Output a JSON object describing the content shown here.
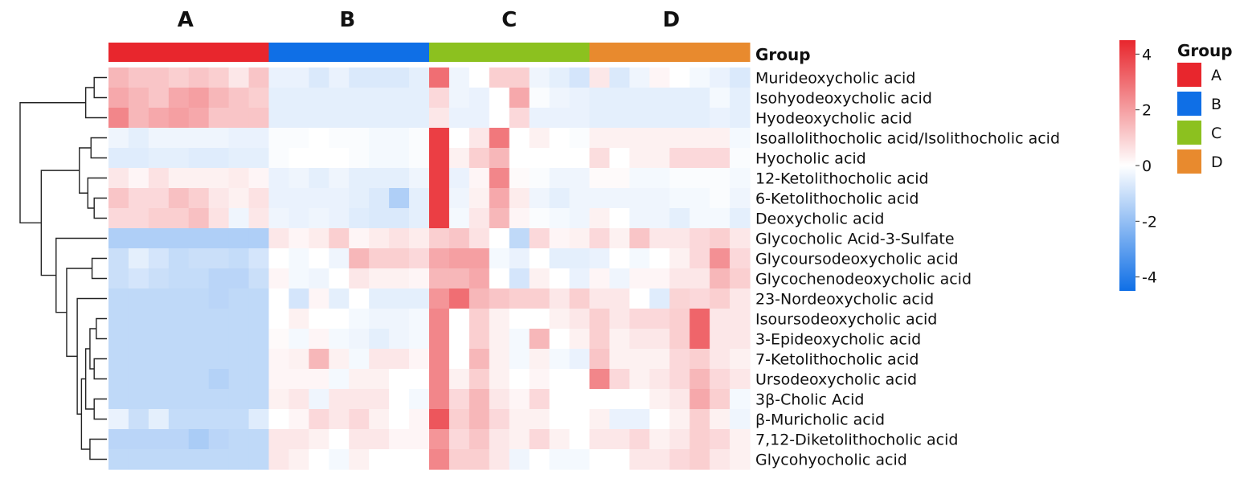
{
  "chart_data": {
    "type": "heatmap",
    "group_titles": [
      "A",
      "B",
      "C",
      "D"
    ],
    "annotation_title": "Group",
    "legend_title": "Group",
    "groups": [
      {
        "name": "A",
        "color": "#e8262d",
        "samples": 8
      },
      {
        "name": "B",
        "color": "#0f6fe6",
        "samples": 8
      },
      {
        "name": "C",
        "color": "#8cc11f",
        "samples": 8
      },
      {
        "name": "D",
        "color": "#e88a2e",
        "samples": 8
      }
    ],
    "rows": [
      "Murideoxycholic acid",
      "Isohyodeoxycholic acid",
      "Hyodeoxycholic acid",
      "Isoallolithocholic acid/Isolithocholic acid",
      "Hyocholic acid",
      "12-Ketolithocholic acid",
      "6-Ketolithocholic acid",
      "Deoxycholic acid",
      "Glycocholic Acid-3-Sulfate",
      "Glycoursodeoxycholic acid",
      "Glycochenodeoxycholic acid",
      "23-Nordeoxycholic acid",
      "Isoursodeoxycholic acid",
      "3-Epideoxycholic acid",
      "7-Ketolithocholic acid",
      "Ursodeoxycholic acid",
      "3β-Cholic Acid",
      "β-Muricholic acid",
      "7,12-Diketolithocholic acid",
      "Glycohyocholic acid"
    ],
    "color_scale": {
      "min": -4.5,
      "max": 4.5,
      "low_color": "#0f6fe6",
      "mid_color": "#ffffff",
      "high_color": "#e8262d",
      "ticks": [
        4,
        2,
        0,
        -2,
        -4
      ]
    },
    "values": [
      [
        1.5,
        1.2,
        1.2,
        1.0,
        1.2,
        1.0,
        0.5,
        1.2,
        -0.4,
        -0.4,
        -0.7,
        -0.4,
        -0.7,
        -0.7,
        -0.7,
        -0.5,
        3.0,
        -0.3,
        0.0,
        1.0,
        1.0,
        -0.3,
        -0.5,
        -0.8,
        0.5,
        -0.7,
        -0.3,
        0.2,
        0.0,
        -0.2,
        -0.4,
        -0.7
      ],
      [
        1.8,
        1.5,
        1.2,
        1.8,
        2.0,
        1.5,
        1.2,
        1.0,
        -0.5,
        -0.5,
        -0.5,
        -0.5,
        -0.5,
        -0.5,
        -0.5,
        -0.5,
        0.8,
        -0.3,
        -0.4,
        0.0,
        1.8,
        -0.1,
        -0.3,
        -0.4,
        -0.5,
        -0.5,
        -0.5,
        -0.5,
        -0.5,
        -0.5,
        -0.2,
        -0.5
      ],
      [
        2.5,
        1.5,
        1.8,
        2.0,
        1.8,
        1.2,
        1.2,
        1.2,
        -0.5,
        -0.5,
        -0.5,
        -0.5,
        -0.5,
        -0.5,
        -0.5,
        -0.5,
        0.5,
        -0.4,
        -0.4,
        0.0,
        0.8,
        -0.4,
        -0.4,
        -0.4,
        -0.5,
        -0.5,
        -0.5,
        -0.5,
        -0.5,
        -0.5,
        -0.4,
        -0.5
      ],
      [
        -0.3,
        -0.5,
        -0.3,
        -0.3,
        -0.3,
        -0.3,
        -0.4,
        -0.4,
        -0.1,
        -0.1,
        0.0,
        -0.1,
        -0.1,
        -0.2,
        -0.2,
        -0.1,
        4.0,
        0.0,
        0.5,
        2.8,
        0.0,
        0.3,
        0.0,
        -0.1,
        0.3,
        0.3,
        0.3,
        0.3,
        0.3,
        0.3,
        0.3,
        -0.2
      ],
      [
        -0.6,
        -0.6,
        -0.5,
        -0.5,
        -0.6,
        -0.6,
        -0.5,
        -0.5,
        -0.1,
        0.0,
        0.0,
        0.0,
        -0.1,
        -0.2,
        -0.2,
        -0.1,
        4.0,
        0.3,
        1.0,
        1.5,
        0.0,
        0.0,
        0.0,
        0.0,
        0.7,
        0.0,
        0.3,
        0.3,
        0.8,
        0.8,
        0.8,
        -0.1
      ],
      [
        0.5,
        0.2,
        0.6,
        0.3,
        0.3,
        0.3,
        0.4,
        0.2,
        -0.4,
        -0.3,
        -0.5,
        -0.3,
        -0.5,
        -0.5,
        -0.5,
        -0.3,
        4.0,
        -0.4,
        0.2,
        2.5,
        0.1,
        -0.1,
        -0.3,
        -0.3,
        0.1,
        0.1,
        -0.2,
        -0.2,
        -0.1,
        -0.1,
        -0.1,
        -0.2
      ],
      [
        1.2,
        0.8,
        0.8,
        1.3,
        1.0,
        0.5,
        0.3,
        0.6,
        -0.4,
        -0.4,
        -0.4,
        -0.4,
        -0.5,
        -0.7,
        -1.5,
        -0.5,
        4.0,
        -0.3,
        0.3,
        1.8,
        0.4,
        -0.3,
        -0.5,
        -0.3,
        -0.3,
        -0.3,
        -0.3,
        -0.3,
        -0.2,
        -0.2,
        -0.1,
        -0.3
      ],
      [
        0.8,
        0.8,
        1.0,
        1.0,
        1.3,
        0.6,
        -0.3,
        0.5,
        -0.3,
        -0.4,
        -0.3,
        -0.4,
        -0.6,
        -0.7,
        -0.7,
        -0.5,
        4.0,
        -0.2,
        0.5,
        1.5,
        0.2,
        -0.1,
        -0.2,
        -0.3,
        0.3,
        0.0,
        -0.3,
        -0.3,
        -0.5,
        -0.2,
        -0.2,
        -0.5
      ],
      [
        -1.5,
        -1.5,
        -1.5,
        -1.5,
        -1.5,
        -1.5,
        -1.5,
        -1.5,
        0.5,
        0.2,
        0.4,
        1.0,
        0.2,
        0.4,
        0.6,
        0.4,
        1.0,
        1.2,
        0.6,
        0.0,
        -1.2,
        0.8,
        0.2,
        0.3,
        0.8,
        0.3,
        1.2,
        0.5,
        0.5,
        0.8,
        1.0,
        0.5
      ],
      [
        -1.0,
        -0.5,
        -0.8,
        -1.1,
        -1.0,
        -1.0,
        -1.1,
        -0.8,
        0.0,
        -0.2,
        0.0,
        -0.3,
        1.5,
        1.0,
        1.0,
        0.8,
        1.8,
        2.0,
        2.0,
        -0.2,
        -0.4,
        0.0,
        -0.5,
        -0.5,
        -0.4,
        0.0,
        -0.2,
        0.0,
        0.3,
        0.8,
        2.3,
        0.8
      ],
      [
        -1.0,
        -0.8,
        -1.0,
        -1.1,
        -1.1,
        -1.3,
        -1.3,
        -1.0,
        0.2,
        -0.2,
        -0.3,
        0.0,
        0.5,
        0.3,
        0.3,
        0.2,
        1.5,
        1.5,
        1.8,
        0.0,
        -0.8,
        0.3,
        0.0,
        -0.4,
        0.2,
        -0.3,
        0.2,
        0.2,
        0.5,
        0.5,
        1.5,
        1.0
      ],
      [
        -1.2,
        -1.2,
        -1.2,
        -1.2,
        -1.2,
        -1.3,
        -1.2,
        -1.2,
        0.0,
        -0.8,
        0.2,
        -0.5,
        0.0,
        -0.5,
        -0.5,
        -0.5,
        2.2,
        3.0,
        1.5,
        1.2,
        1.0,
        1.0,
        0.5,
        1.0,
        0.5,
        0.5,
        0.0,
        -0.6,
        0.9,
        0.8,
        1.0,
        0.5
      ],
      [
        -1.2,
        -1.2,
        -1.2,
        -1.2,
        -1.2,
        -1.2,
        -1.2,
        -1.2,
        0.0,
        0.3,
        0.0,
        0.0,
        -0.2,
        -0.3,
        -0.3,
        -0.2,
        2.5,
        0.0,
        1.0,
        0.3,
        0.0,
        0.0,
        0.3,
        0.5,
        1.0,
        0.5,
        0.8,
        0.8,
        1.0,
        3.2,
        0.5,
        0.5
      ],
      [
        -1.2,
        -1.2,
        -1.2,
        -1.2,
        -1.2,
        -1.2,
        -1.2,
        -1.2,
        0.1,
        -0.2,
        0.2,
        -0.2,
        -0.3,
        -0.5,
        -0.3,
        -0.2,
        2.5,
        0.0,
        1.0,
        0.3,
        -0.2,
        1.5,
        0.0,
        0.3,
        1.0,
        0.3,
        0.5,
        0.5,
        1.0,
        3.2,
        0.5,
        0.5
      ],
      [
        -1.2,
        -1.2,
        -1.2,
        -1.2,
        -1.2,
        -1.2,
        -1.2,
        -1.2,
        0.2,
        0.3,
        1.5,
        0.3,
        -0.2,
        0.5,
        0.5,
        0.2,
        2.5,
        0.0,
        1.5,
        0.3,
        -0.2,
        0.3,
        -0.2,
        -0.4,
        1.2,
        0.3,
        0.3,
        0.3,
        0.8,
        1.0,
        0.5,
        0.3
      ],
      [
        -1.2,
        -1.2,
        -1.2,
        -1.2,
        -1.2,
        -1.4,
        -1.2,
        -1.2,
        0.2,
        0.2,
        0.2,
        -0.2,
        0.3,
        0.3,
        0.0,
        0.0,
        2.5,
        0.3,
        1.0,
        0.3,
        0.0,
        0.2,
        0.0,
        0.0,
        2.5,
        0.8,
        0.3,
        0.5,
        0.8,
        1.5,
        0.8,
        0.5
      ],
      [
        -1.2,
        -1.2,
        -1.2,
        -1.2,
        -1.2,
        -1.2,
        -1.2,
        -1.2,
        0.3,
        0.5,
        -0.3,
        0.5,
        0.5,
        0.5,
        0.0,
        -0.2,
        2.5,
        0.8,
        1.5,
        0.5,
        0.2,
        0.8,
        0.0,
        0.0,
        0.0,
        0.0,
        0.0,
        0.3,
        0.5,
        1.8,
        1.0,
        -0.2
      ],
      [
        -0.4,
        -1.0,
        -0.5,
        -1.1,
        -1.1,
        -1.1,
        -1.1,
        -0.6,
        0.0,
        0.2,
        0.8,
        0.5,
        0.8,
        0.3,
        0.0,
        0.2,
        3.5,
        1.0,
        1.5,
        0.8,
        0.3,
        0.3,
        0.0,
        0.0,
        0.3,
        -0.4,
        -0.4,
        0.0,
        0.3,
        1.0,
        0.3,
        -0.3
      ],
      [
        -1.3,
        -1.3,
        -1.3,
        -1.3,
        -1.6,
        -1.3,
        -1.2,
        -1.2,
        0.5,
        0.5,
        0.3,
        0.0,
        0.5,
        0.5,
        0.2,
        0.2,
        2.2,
        0.8,
        1.2,
        0.5,
        0.3,
        0.8,
        0.3,
        0.0,
        0.5,
        0.5,
        0.8,
        0.3,
        0.5,
        1.0,
        0.8,
        0.3
      ],
      [
        -1.2,
        -1.2,
        -1.2,
        -1.2,
        -1.2,
        -1.2,
        -1.2,
        -1.2,
        0.5,
        0.3,
        0.0,
        -0.2,
        0.3,
        0.0,
        0.0,
        0.0,
        2.5,
        1.0,
        1.0,
        0.5,
        -0.3,
        0.0,
        -0.2,
        -0.2,
        0.0,
        0.0,
        0.5,
        0.5,
        0.8,
        1.0,
        0.5,
        0.3
      ]
    ],
    "row_dendrogram": {
      "leaf_order": [
        0,
        1,
        2,
        3,
        4,
        5,
        6,
        7,
        8,
        9,
        10,
        11,
        12,
        13,
        14,
        15,
        16,
        17,
        18,
        19
      ],
      "merges": [
        [
          0,
          1,
          0.12
        ],
        [
          -1,
          2,
          0.2
        ],
        [
          3,
          4,
          0.15
        ],
        [
          6,
          7,
          0.12
        ],
        [
          5,
          -4,
          0.18
        ],
        [
          -3,
          -5,
          0.26
        ],
        [
          9,
          10,
          0.14
        ],
        [
          12,
          13,
          0.1
        ],
        [
          14,
          15,
          0.12
        ],
        [
          -8,
          -9,
          0.16
        ],
        [
          16,
          17,
          0.12
        ],
        [
          -10,
          -11,
          0.2
        ],
        [
          18,
          19,
          0.16
        ],
        [
          -12,
          -13,
          0.24
        ],
        [
          11,
          -14,
          0.28
        ],
        [
          -7,
          -15,
          0.38
        ],
        [
          8,
          -16,
          0.48
        ],
        [
          -6,
          -17,
          0.62
        ],
        [
          -2,
          -18,
          0.82
        ]
      ]
    }
  }
}
